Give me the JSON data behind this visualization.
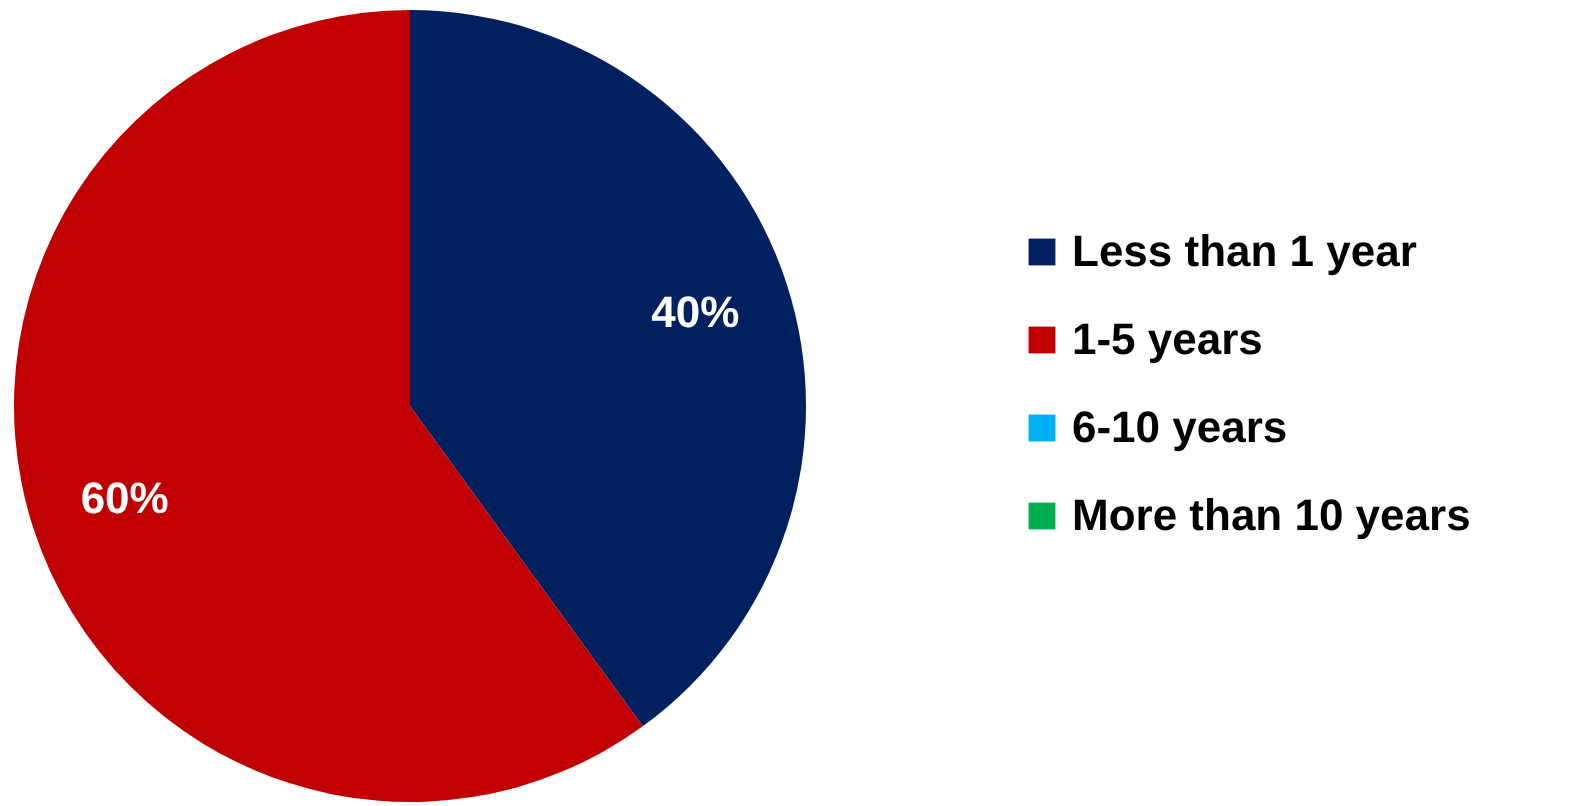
{
  "chart_data": {
    "type": "pie",
    "categories": [
      "Less than 1 year",
      "1-5 years",
      "6-10 years",
      "More than 10 years"
    ],
    "values": [
      40,
      60,
      0,
      0
    ],
    "colors": [
      "#002060",
      "#c00000",
      "#00b0f0",
      "#00b050"
    ],
    "value_labels": [
      "40%",
      "60%",
      null,
      null
    ],
    "legend": "right"
  }
}
